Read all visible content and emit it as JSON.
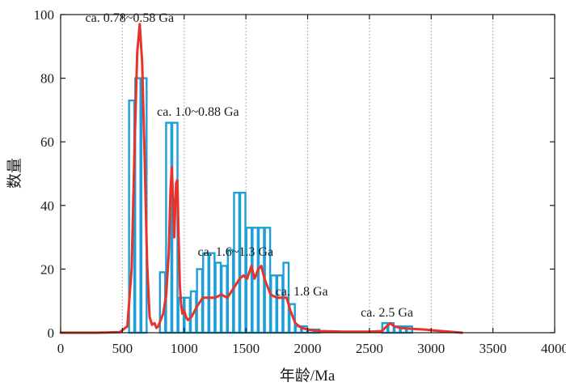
{
  "chart_data": {
    "type": "bar",
    "title": "",
    "xlabel": "年龄/Ma",
    "ylabel": "数量",
    "xlim": [
      0,
      4000
    ],
    "ylim": [
      0,
      100
    ],
    "x_ticks": [
      "0",
      "500",
      "1000",
      "1500",
      "2000",
      "2500",
      "3000",
      "3500",
      "4000"
    ],
    "x_tick_values": [
      0,
      500,
      1000,
      1500,
      2000,
      2500,
      3000,
      3500,
      4000
    ],
    "y_ticks": [
      "0",
      "20",
      "40",
      "60",
      "80",
      "100"
    ],
    "y_tick_values": [
      0,
      20,
      40,
      60,
      80,
      100
    ],
    "grid": "vertical dotted at x ticks",
    "bin_width": 50,
    "series": [
      {
        "name": "histogram",
        "type": "bar",
        "color": "#1e9fd8",
        "bin_starts": [
          550,
          600,
          650,
          800,
          850,
          900,
          950,
          1000,
          1050,
          1100,
          1150,
          1200,
          1250,
          1300,
          1350,
          1400,
          1450,
          1500,
          1550,
          1600,
          1650,
          1700,
          1750,
          1800,
          1850,
          1900,
          1950,
          2000,
          2050,
          2600,
          2650,
          2700,
          2750,
          2800
        ],
        "values": [
          73,
          80,
          80,
          19,
          66,
          66,
          11,
          11,
          13,
          20,
          25,
          25,
          22,
          21,
          26,
          44,
          44,
          33,
          33,
          33,
          33,
          18,
          18,
          22,
          9,
          2,
          2,
          1,
          1,
          3,
          3,
          2,
          2,
          2
        ]
      },
      {
        "name": "probability density curve",
        "type": "line",
        "color": "#e8322a",
        "points": [
          [
            0,
            0
          ],
          [
            300,
            0
          ],
          [
            480,
            0.2
          ],
          [
            540,
            2
          ],
          [
            575,
            20
          ],
          [
            600,
            60
          ],
          [
            620,
            88
          ],
          [
            640,
            97
          ],
          [
            660,
            85
          ],
          [
            680,
            55
          ],
          [
            700,
            22
          ],
          [
            720,
            5
          ],
          [
            740,
            2.5
          ],
          [
            760,
            3
          ],
          [
            775,
            1.5
          ],
          [
            790,
            2
          ],
          [
            810,
            4
          ],
          [
            830,
            6
          ],
          [
            855,
            12
          ],
          [
            875,
            25
          ],
          [
            890,
            45
          ],
          [
            900,
            52
          ],
          [
            910,
            42
          ],
          [
            920,
            30
          ],
          [
            935,
            47
          ],
          [
            945,
            48
          ],
          [
            955,
            30
          ],
          [
            965,
            15
          ],
          [
            975,
            9
          ],
          [
            985,
            6
          ],
          [
            1000,
            7
          ],
          [
            1015,
            5
          ],
          [
            1030,
            4
          ],
          [
            1060,
            5
          ],
          [
            1100,
            8
          ],
          [
            1150,
            11
          ],
          [
            1200,
            11
          ],
          [
            1250,
            11
          ],
          [
            1300,
            12
          ],
          [
            1350,
            11
          ],
          [
            1400,
            14
          ],
          [
            1450,
            17
          ],
          [
            1480,
            18
          ],
          [
            1510,
            17
          ],
          [
            1545,
            21
          ],
          [
            1570,
            17
          ],
          [
            1600,
            20
          ],
          [
            1625,
            21
          ],
          [
            1650,
            17
          ],
          [
            1700,
            12
          ],
          [
            1750,
            11
          ],
          [
            1790,
            11
          ],
          [
            1830,
            11
          ],
          [
            1860,
            7
          ],
          [
            1900,
            3
          ],
          [
            1950,
            1.5
          ],
          [
            2000,
            1
          ],
          [
            2100,
            0.5
          ],
          [
            2300,
            0.3
          ],
          [
            2500,
            0.3
          ],
          [
            2600,
            0.5
          ],
          [
            2640,
            2
          ],
          [
            2670,
            3
          ],
          [
            2700,
            2
          ],
          [
            2750,
            1.5
          ],
          [
            2850,
            1.2
          ],
          [
            2950,
            1
          ],
          [
            3050,
            0.6
          ],
          [
            3150,
            0.3
          ],
          [
            3250,
            0
          ]
        ]
      }
    ],
    "annotations": [
      {
        "text": "ca. 0.78~0.58 Ga",
        "x": 200,
        "y": 99
      },
      {
        "text": "ca. 1.0~0.88 Ga",
        "x": 780,
        "y": 69.5
      },
      {
        "text": "ca. 1.6~1.3 Ga",
        "x": 1110,
        "y": 25.5
      },
      {
        "text": "ca. 1.8 Ga",
        "x": 1740,
        "y": 13
      },
      {
        "text": "ca. 2.5 Ga",
        "x": 2430,
        "y": 6.3
      }
    ]
  }
}
